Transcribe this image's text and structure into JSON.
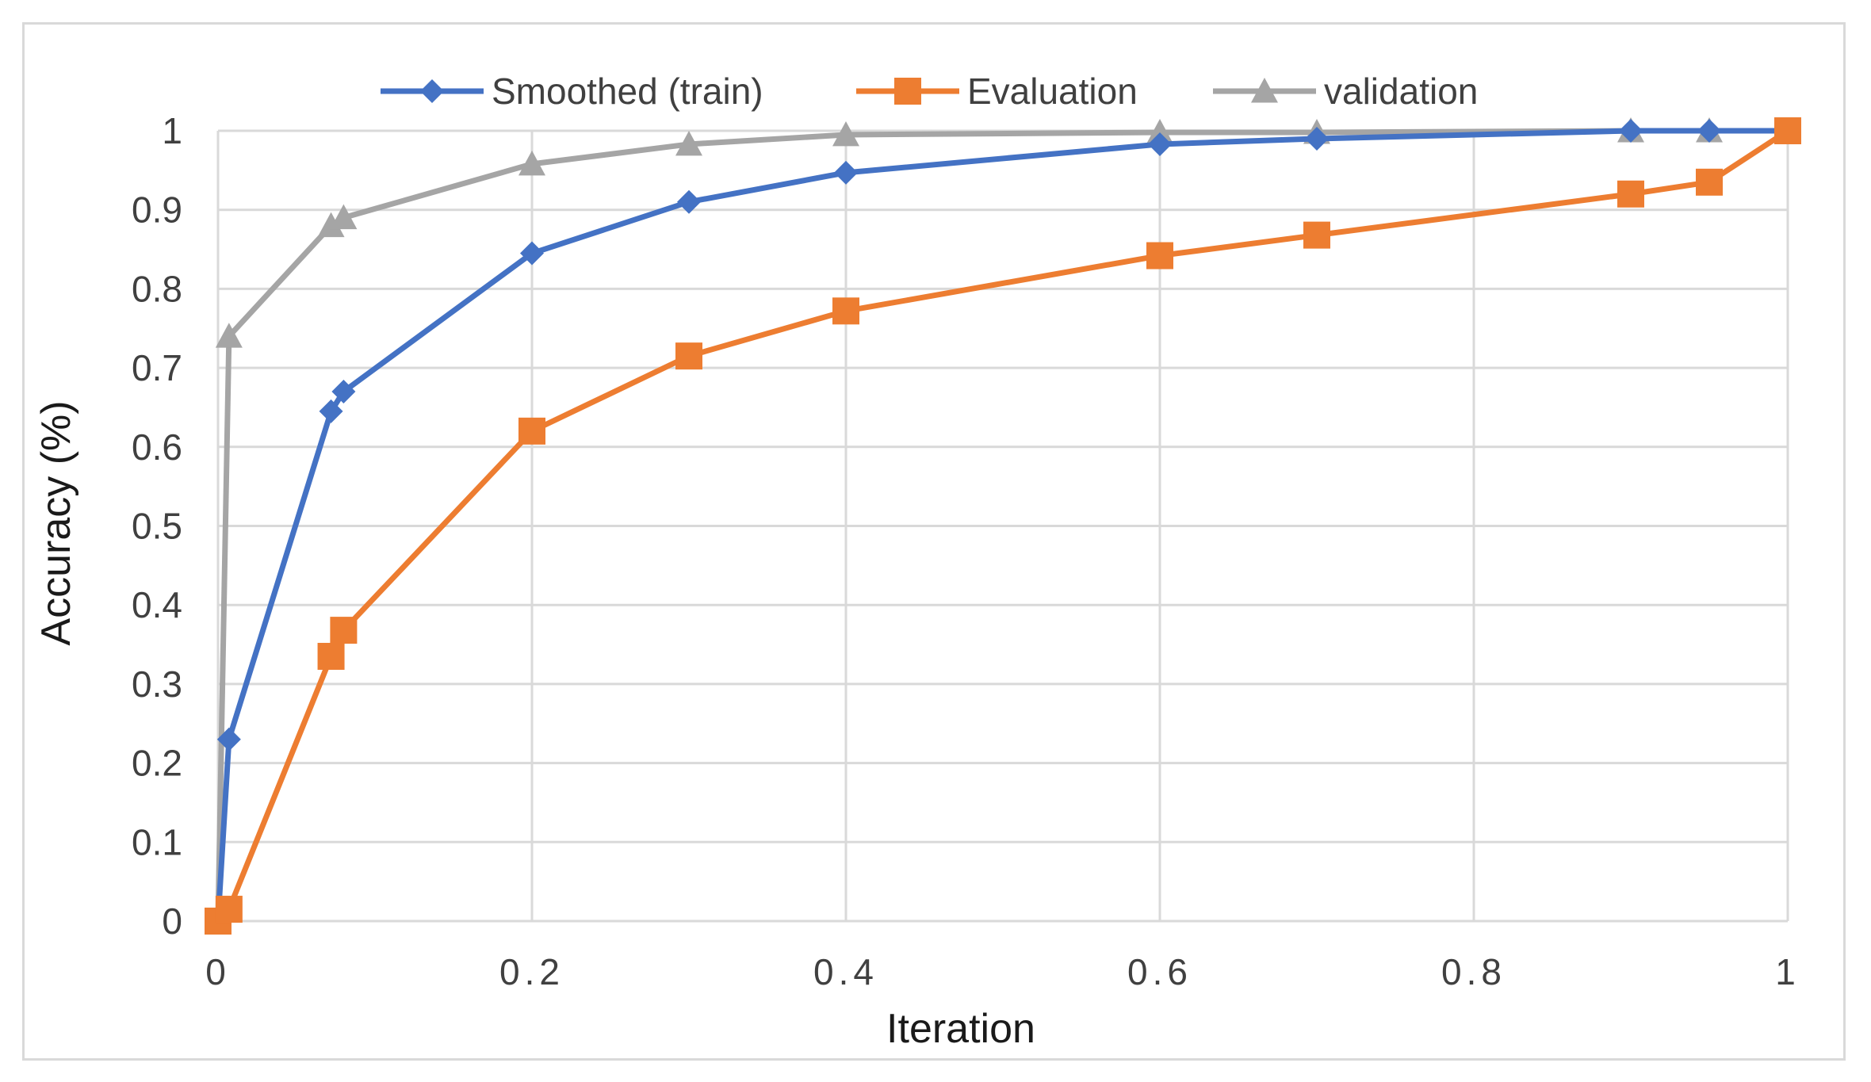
{
  "chart_data": {
    "type": "line",
    "title": "",
    "xlabel": "Iteration",
    "ylabel": "Accuracy (%)",
    "xlim": [
      0,
      1
    ],
    "ylim": [
      0,
      1
    ],
    "x_ticks": [
      "0",
      "0.2",
      "0.4",
      "0.6",
      "0.8",
      "1"
    ],
    "y_ticks": [
      "0",
      "0.1",
      "0.2",
      "0.3",
      "0.4",
      "0.5",
      "0.6",
      "0.7",
      "0.8",
      "0.9",
      "1"
    ],
    "grid": true,
    "legend_position": "top",
    "series": [
      {
        "name": "Smoothed (train)",
        "color": "#4472c4",
        "marker": "diamond",
        "x": [
          0,
          0.007,
          0.072,
          0.08,
          0.2,
          0.3,
          0.4,
          0.6,
          0.7,
          0.9,
          0.95,
          1
        ],
        "y": [
          0,
          0.23,
          0.645,
          0.67,
          0.845,
          0.91,
          0.947,
          0.983,
          0.99,
          1.0,
          1.0,
          1.0
        ]
      },
      {
        "name": "Evaluation",
        "color": "#ed7d31",
        "marker": "square",
        "x": [
          0,
          0.007,
          0.072,
          0.08,
          0.2,
          0.3,
          0.4,
          0.6,
          0.7,
          0.9,
          0.95,
          1
        ],
        "y": [
          0,
          0.015,
          0.335,
          0.368,
          0.62,
          0.715,
          0.772,
          0.842,
          0.868,
          0.92,
          0.935,
          1.0
        ]
      },
      {
        "name": "validation",
        "color": "#a5a5a5",
        "marker": "triangle",
        "x": [
          0,
          0.007,
          0.072,
          0.08,
          0.2,
          0.3,
          0.4,
          0.6,
          0.7,
          0.9,
          0.95,
          1
        ],
        "y": [
          0,
          0.74,
          0.88,
          0.89,
          0.958,
          0.983,
          0.995,
          0.998,
          0.998,
          1.0,
          1.0,
          1.0
        ]
      }
    ]
  }
}
